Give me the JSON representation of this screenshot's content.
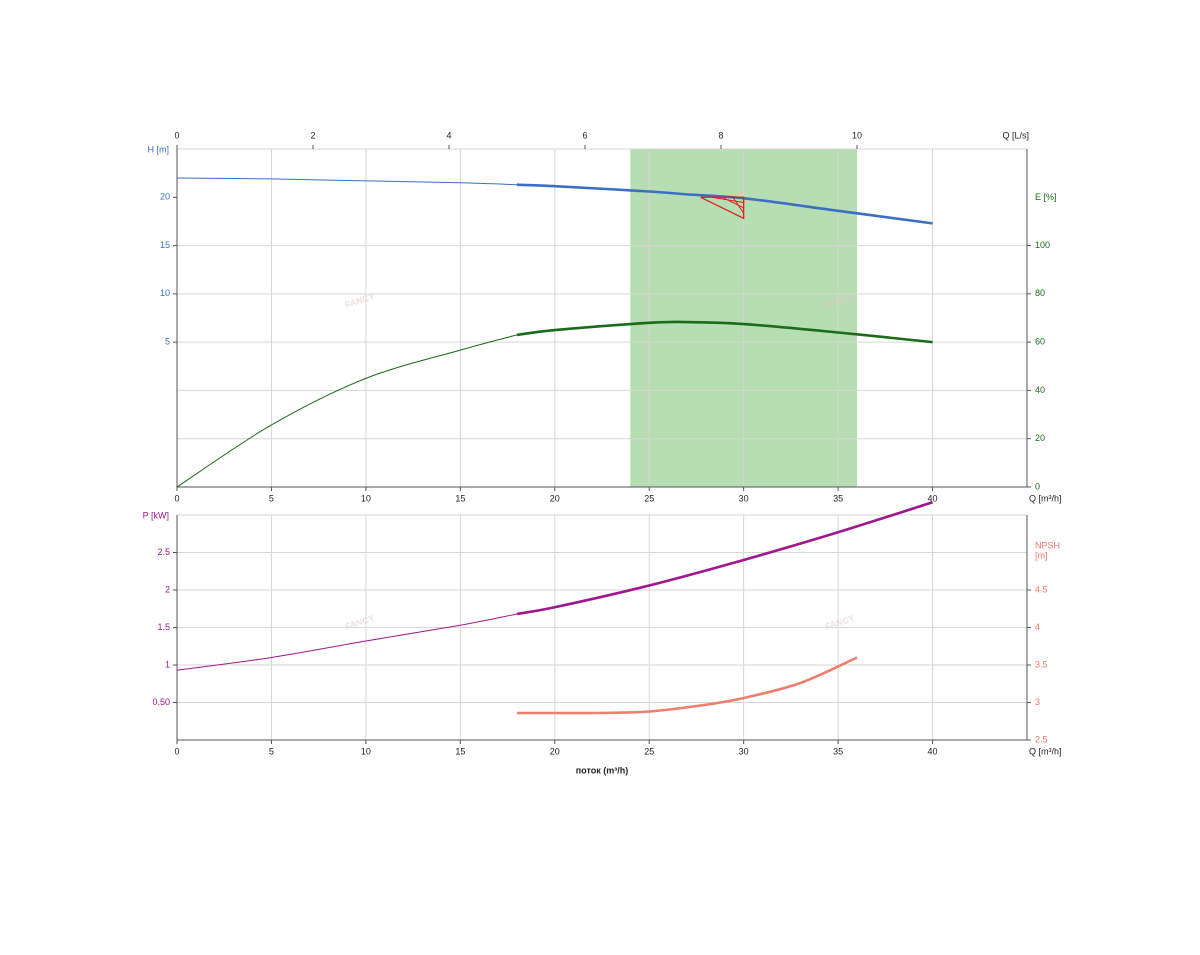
{
  "chart_data": [
    {
      "type": "line",
      "xlim": [
        0,
        45
      ],
      "xticks": [
        0,
        5,
        10,
        15,
        20,
        25,
        30,
        35,
        40
      ],
      "xlabel": "Q [m³/h]",
      "x2lim": [
        0,
        12.5
      ],
      "x2ticks": [
        0,
        2,
        4,
        6,
        8,
        10
      ],
      "x2label": "Q [L/s]",
      "ylim": [
        -10,
        25
      ],
      "yticks": [
        5,
        10,
        15,
        20
      ],
      "ylabel": "H [m]",
      "ycolor": "#3a6fc4",
      "y2lim": [
        0,
        140
      ],
      "y2ticks": [
        0,
        20,
        40,
        60,
        80,
        100
      ],
      "y2label": "E [%]",
      "y2color": "#1a6b1a",
      "band": [
        24,
        36
      ],
      "band_color": "#9fd19a",
      "duty_point": {
        "x": 30,
        "y": 20,
        "color": "#e02020"
      },
      "watermark": "FANCY",
      "grid": true,
      "series": [
        {
          "name": "H",
          "color": "#3a6fc4",
          "bold_from": 18,
          "x": [
            0,
            5,
            10,
            15,
            18,
            20,
            25,
            27,
            30,
            35,
            40
          ],
          "values": [
            22.0,
            21.9,
            21.7,
            21.5,
            21.3,
            21.15,
            20.6,
            20.3,
            19.9,
            18.6,
            17.3
          ]
        },
        {
          "name": "E",
          "color": "#1a6b1a",
          "axis": "y2",
          "bold_from": 18,
          "x": [
            0,
            5,
            10,
            15,
            18,
            20,
            25,
            27,
            30,
            35,
            40
          ],
          "values": [
            0,
            25.7,
            45,
            56.7,
            63,
            65,
            68,
            68.3,
            67.5,
            64,
            60
          ]
        }
      ]
    },
    {
      "type": "line",
      "xlim": [
        0,
        45
      ],
      "xticks": [
        0,
        5,
        10,
        15,
        20,
        25,
        30,
        35,
        40
      ],
      "xlabel": "Q [m³/h]",
      "title_below": "поток (m³/h)",
      "ylim": [
        0,
        3
      ],
      "yticks": [
        {
          "value": 0.5,
          "label": "0.50"
        },
        1,
        1.5,
        2,
        2.5
      ],
      "ylabel": "P [kW]",
      "ycolor": "#a0168c",
      "y2lim": [
        2.5,
        5.5
      ],
      "y2ticks": [
        2.5,
        3,
        3.5,
        4,
        4.5
      ],
      "y2label_lines": [
        "NPSH",
        "[m]"
      ],
      "y2color": "#e9786a",
      "watermark": "FANCY",
      "grid": true,
      "series": [
        {
          "name": "P",
          "color": "#a0168c",
          "bold_from": 18,
          "x": [
            0,
            5,
            10,
            15,
            18,
            20,
            25,
            30,
            35,
            40
          ],
          "values": [
            0.93,
            1.1,
            1.32,
            1.53,
            1.68,
            1.77,
            2.06,
            2.4,
            2.77,
            3.17
          ]
        },
        {
          "name": "NPSH",
          "color": "#ee7e6e",
          "axis": "y2",
          "bold_from": 18,
          "x": [
            18,
            20,
            22,
            25,
            28,
            30,
            33,
            36
          ],
          "values": [
            2.86,
            2.86,
            2.86,
            2.88,
            2.97,
            3.06,
            3.26,
            3.6
          ]
        }
      ]
    }
  ]
}
